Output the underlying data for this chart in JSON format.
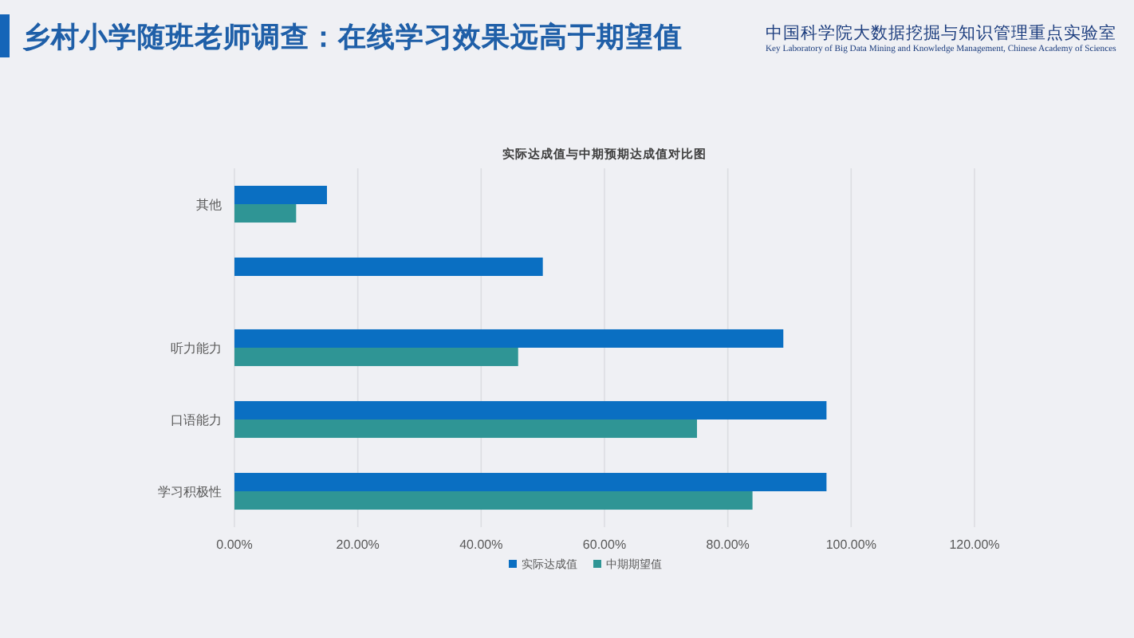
{
  "chart_data": {
    "type": "bar",
    "orientation": "horizontal",
    "title": "乡村小学随班老师调查：在线学习效果远高于期望值",
    "subtitle": "实际达成值与中期预期达成值对比图",
    "categories": [
      "其他",
      null,
      "听力能力",
      "口语能力",
      "学习积极性"
    ],
    "series": [
      {
        "name": "实际达成值",
        "color": "#0a6fc2",
        "values": [
          15,
          50,
          89,
          96,
          96
        ]
      },
      {
        "name": "中期期望值",
        "color": "#2f9595",
        "values": [
          10,
          null,
          46,
          75,
          84
        ]
      }
    ],
    "xlim": [
      0,
      120
    ],
    "xticks": [
      {
        "value": 0,
        "label": "0.00%"
      },
      {
        "value": 20,
        "label": "20.00%"
      },
      {
        "value": 40,
        "label": "40.00%"
      },
      {
        "value": 60,
        "label": "60.00%"
      },
      {
        "value": 80,
        "label": "80.00%"
      },
      {
        "value": 100,
        "label": "100.00%"
      },
      {
        "value": 120,
        "label": "120.00%"
      }
    ],
    "grid": "x",
    "legend": "bottom",
    "annotations": [
      "中国科学院大数据挖掘与知识管理重点实验室",
      "Key Laboratory of Big Data Mining and Knowledge Management, Chinese Academy of Sciences"
    ]
  }
}
